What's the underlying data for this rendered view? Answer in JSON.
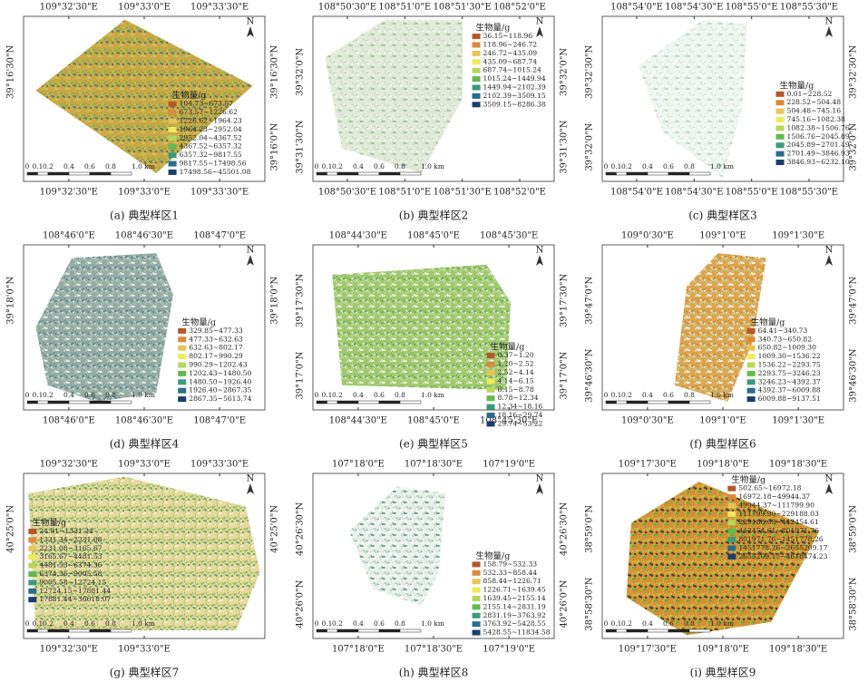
{
  "legend_title": "生物量/g",
  "north": "N",
  "scale_labels": [
    "0",
    "0.1",
    "0.2",
    "0.4",
    "0.6",
    "0.8",
    "1.0 km"
  ],
  "legend_colors": [
    "#b5562a",
    "#d98a3c",
    "#e6c457",
    "#eeea5c",
    "#b7d75c",
    "#62b94f",
    "#3a9a7b",
    "#2b6b8c",
    "#1b3d6e"
  ],
  "panels": [
    {
      "caption": "(a) 典型样区1",
      "top_labels": [
        "109°32'30\"E",
        "109°33'0\"E",
        "109°33'30\"E"
      ],
      "bottom_labels": [
        "109°32'30\"E",
        "109°33'0\"E",
        "109°33'30\"E"
      ],
      "left_labels": [
        "39°16'30\"N"
      ],
      "right_labels": [
        "39°16'30\"N",
        "39°16'0\"N"
      ],
      "legend": [
        "104.73~673.57",
        "673.57~1226.62",
        "1226.62~1964.23",
        "1964.23~2952.04",
        "2952.04~4367.52",
        "4367.52~6357.32",
        "6357.32~9817.55",
        "9817.55~17498.56",
        "17498.56~45501.08"
      ]
    },
    {
      "caption": "(b) 典型样区2",
      "top_labels": [
        "108°50'30\"E",
        "108°51'0\"E",
        "108°51'30\"E",
        "108°52'0\"E"
      ],
      "bottom_labels": [
        "108°50'30\"E",
        "108°51'0\"E",
        "108°51'30\"E",
        "108°52'0\"E"
      ],
      "left_labels": [
        "39°32'0\"N",
        "39°31'30\"N"
      ],
      "right_labels": [
        "39°32'0\"N",
        "39°31'30\"N"
      ],
      "legend": [
        "36.15~118.96",
        "118.96~246.72",
        "246.72~435.09",
        "435.09~687.74",
        "687.74~1015.24",
        "1015.24~1449.94",
        "1449.94~2102.39",
        "2102.39~3509.15",
        "3509.15~8286.38"
      ]
    },
    {
      "caption": "(c) 典型样区3",
      "top_labels": [
        "108°54'0\"E",
        "108°54'30\"E",
        "108°55'0\"E",
        "108°55'30\"E"
      ],
      "bottom_labels": [
        "108°54'0\"E",
        "108°54'30\"E",
        "108°55'0\"E",
        "108°55'30\"E"
      ],
      "left_labels": [
        "39°32'30\"N",
        "39°32'0\"N"
      ],
      "right_labels": [
        "39°32'30\"N",
        "39°32'0\"N"
      ],
      "legend": [
        "0.01~228.52",
        "228.52~504.48",
        "504.48~745.16",
        "745.16~1082.38",
        "1082.38~1506.76",
        "1506.76~2045.89",
        "2045.89~2701.49",
        "2701.49~3846.93",
        "3846.93~6232.10"
      ]
    },
    {
      "caption": "(d) 典型样区4",
      "top_labels": [
        "108°46'0\"E",
        "108°46'30\"E",
        "108°47'0\"E"
      ],
      "bottom_labels": [
        "108°46'0\"E",
        "108°46'30\"E",
        "108°47'0\"E"
      ],
      "left_labels": [
        "39°18'0\"N"
      ],
      "right_labels": [
        "39°18'0\"N"
      ],
      "legend": [
        "329.85~477.33",
        "477.33~632.63",
        "632.63~802.17",
        "802.17~990.29",
        "990.29~1202.43",
        "1202.43~1480.50",
        "1480.50~1926.40",
        "1926.40~2867.35",
        "2867.35~5613.74"
      ]
    },
    {
      "caption": "(e) 典型样区5",
      "top_labels": [
        "108°44'30\"E",
        "108°45'0\"E",
        "108°45'30\"E"
      ],
      "bottom_labels": [
        "108°44'30\"E",
        "108°45'0\"E",
        "108°45'30\"E"
      ],
      "left_labels": [
        "39°17'30\"N",
        "39°17'0\"N"
      ],
      "right_labels": [
        "39°17'30\"N",
        "39°17'0\"N"
      ],
      "legend": [
        "0.37~1.20",
        "1.20~2.52",
        "2.52~4.14",
        "4.14~6.15",
        "6.15~8.78",
        "8.78~12.34",
        "12.34~18.16",
        "18.16~29.74",
        "29.74~53.22"
      ]
    },
    {
      "caption": "(f) 典型样区6",
      "top_labels": [
        "109°0'30\"E",
        "109°1'0\"E",
        "109°1'30\"E"
      ],
      "bottom_labels": [
        "109°0'30\"E",
        "109°1'0\"E",
        "109°1'30\"E"
      ],
      "left_labels": [
        "39°47'0\"N",
        "39°46'30\"N"
      ],
      "right_labels": [
        "39°47'0\"N",
        "39°46'30\"N"
      ],
      "legend": [
        "64.41~340.73",
        "340.73~650.82",
        "650.82~1009.30",
        "1009.30~1536.22",
        "1536.22~2293.75",
        "2293.75~3246.23",
        "3246.23~4392.37",
        "4392.37~6009.88",
        "6009.88~9137.51"
      ]
    },
    {
      "caption": "(g) 典型样区7",
      "top_labels": [
        "109°32'30\"E",
        "109°33'0\"E",
        "109°33'30\"E"
      ],
      "bottom_labels": [
        "109°32'30\"E",
        "109°33'0\"E"
      ],
      "left_labels": [
        "40°25'0\"N"
      ],
      "right_labels": [
        "40°25'0\"N"
      ],
      "legend": [
        "24.91~1331.34",
        "1331.34~2231.08",
        "2231.08~3165.67",
        "3165.67~4481.53",
        "4481.53~6374.36",
        "6374.36~9005.58",
        "9005.58~12724.15",
        "12724.15~17881.44",
        "17881.44~36618.07"
      ]
    },
    {
      "caption": "(h) 典型样区8",
      "top_labels": [
        "107°18'0\"E",
        "107°18'30\"E",
        "107°19'0\"E"
      ],
      "bottom_labels": [
        "107°18'0\"E",
        "107°18'30\"E",
        "107°19'0\"E"
      ],
      "left_labels": [
        "40°26'30\"N",
        "40°26'0\"N"
      ],
      "right_labels": [
        "40°26'30\"N",
        "40°26'0\"N"
      ],
      "legend": [
        "158.79~532.33",
        "532.33~858.44",
        "858.44~1226.71",
        "1226.71~1639.45",
        "1639.45~2155.14",
        "2155.14~2831.19",
        "2831.19~3763.92",
        "3763.92~5428.55",
        "5428.55~11834.58"
      ]
    },
    {
      "caption": "(i) 典型样区9",
      "top_labels": [
        "109°17'30\"E",
        "109°18'0\"E",
        "109°18'30\"E"
      ],
      "bottom_labels": [
        "109°17'30\"E",
        "109°18'0\"E",
        "109°18'30\"E"
      ],
      "left_labels": [
        "38°59'0\"N",
        "38°58'30\"N"
      ],
      "right_labels": [
        "38°59'0\"N",
        "38°58'30\"N"
      ],
      "legend": [
        "502.65~16972.18",
        "16972.18~49944.37",
        "49944.37~111799.90",
        "111799.90~229188.03",
        "229188.03~442454.61",
        "442454.61~801971.76",
        "801971.76~1451778.26",
        "1451778.26~2655209.17",
        "2655209.17~4618474.23"
      ]
    }
  ]
}
